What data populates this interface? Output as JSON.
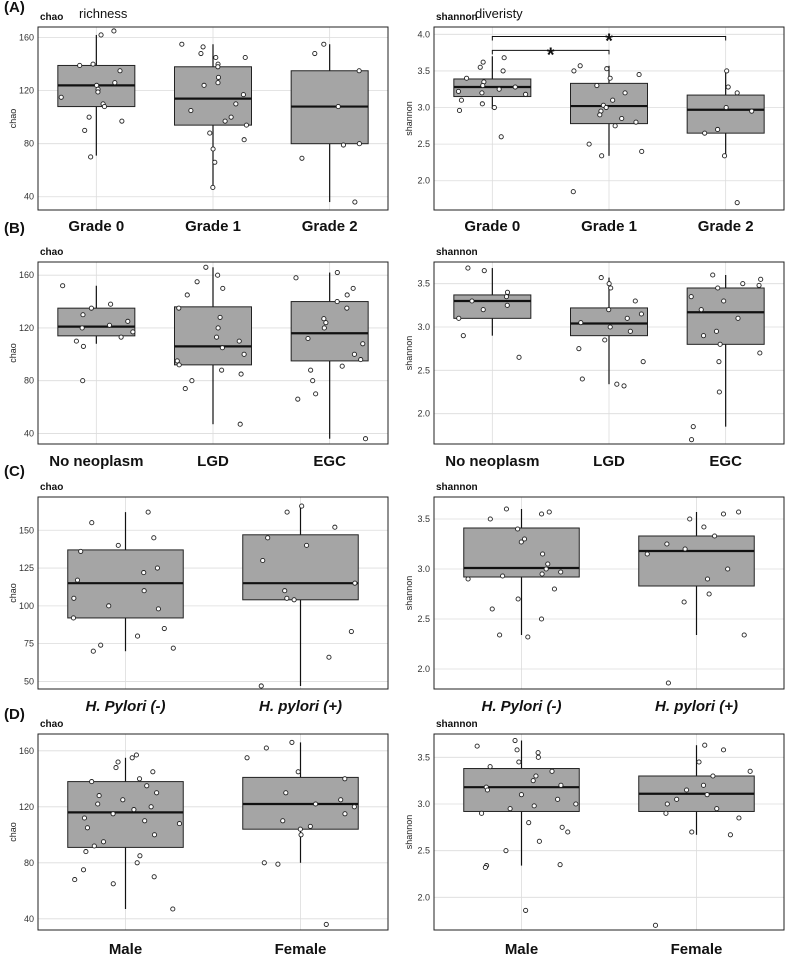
{
  "chart_data": [
    {
      "type": "box",
      "panel": "(A)",
      "title": "chao",
      "subtitle": "richness",
      "ylabel": "chao",
      "ylim": [
        30,
        168
      ],
      "yticks": [
        40,
        80,
        120,
        160
      ],
      "categories": [
        "Grade 0",
        "Grade 1",
        "Grade 2"
      ],
      "boxes": [
        {
          "min": 71,
          "q1": 108,
          "median": 124,
          "q3": 139,
          "max": 162,
          "points": [
            165,
            162,
            140,
            139,
            135,
            126,
            124,
            121,
            119,
            115,
            110,
            108,
            100,
            97,
            90,
            70
          ]
        },
        {
          "min": 47,
          "q1": 94,
          "median": 114,
          "q3": 138,
          "max": 155,
          "points": [
            155,
            153,
            148,
            145,
            145,
            140,
            138,
            130,
            126,
            124,
            117,
            110,
            105,
            100,
            97,
            94,
            88,
            83,
            76,
            66,
            47
          ]
        },
        {
          "min": 36,
          "q1": 80,
          "median": 108,
          "q3": 135,
          "max": 155,
          "points": [
            155,
            148,
            135,
            108,
            80,
            79,
            69,
            36
          ]
        }
      ],
      "significance": []
    },
    {
      "type": "box",
      "panel": "",
      "title": "shannon",
      "subtitle": "diveristy",
      "ylabel": "shannon",
      "ylim": [
        1.6,
        4.1
      ],
      "yticks": [
        "2.0",
        "2.5",
        "3.0",
        "3.5",
        "4.0"
      ],
      "categories": [
        "Grade 0",
        "Grade 1",
        "Grade 2"
      ],
      "boxes": [
        {
          "min": 2.98,
          "q1": 3.15,
          "median": 3.28,
          "q3": 3.39,
          "max": 3.7,
          "points": [
            3.68,
            3.62,
            3.55,
            3.5,
            3.4,
            3.35,
            3.3,
            3.28,
            3.25,
            3.22,
            3.2,
            3.18,
            3.1,
            3.05,
            3.0,
            2.96,
            2.6
          ]
        },
        {
          "min": 2.34,
          "q1": 2.78,
          "median": 3.02,
          "q3": 3.33,
          "max": 3.57,
          "points": [
            3.57,
            3.53,
            3.5,
            3.45,
            3.4,
            3.3,
            3.2,
            3.1,
            3.03,
            3.0,
            2.95,
            2.9,
            2.85,
            2.8,
            2.75,
            2.5,
            2.4,
            2.34,
            1.85
          ]
        },
        {
          "min": 2.34,
          "q1": 2.65,
          "median": 2.97,
          "q3": 3.17,
          "max": 3.5,
          "points": [
            3.5,
            3.28,
            3.2,
            3.0,
            2.95,
            2.7,
            2.65,
            2.34,
            1.7
          ]
        }
      ],
      "significance": [
        {
          "from": 0,
          "to": 1,
          "label": "*",
          "y": 3.78
        },
        {
          "from": 0,
          "to": 2,
          "label": "*",
          "y": 3.97
        }
      ]
    },
    {
      "type": "box",
      "panel": "(B)",
      "title": "chao",
      "subtitle": "",
      "ylabel": "chao",
      "ylim": [
        32,
        170
      ],
      "yticks": [
        40,
        80,
        120,
        160
      ],
      "categories": [
        "No neoplasm",
        "LGD",
        "EGC"
      ],
      "boxes": [
        {
          "min": 108,
          "q1": 114,
          "median": 121,
          "q3": 135,
          "max": 152,
          "points": [
            152,
            138,
            135,
            130,
            125,
            122,
            120,
            117,
            113,
            110,
            106,
            80
          ]
        },
        {
          "min": 47,
          "q1": 92,
          "median": 106,
          "q3": 136,
          "max": 166,
          "points": [
            166,
            160,
            155,
            150,
            145,
            135,
            128,
            120,
            113,
            110,
            105,
            100,
            95,
            92,
            88,
            85,
            80,
            74,
            47
          ]
        },
        {
          "min": 36,
          "q1": 95,
          "median": 116,
          "q3": 140,
          "max": 162,
          "points": [
            162,
            158,
            150,
            145,
            140,
            135,
            127,
            124,
            120,
            112,
            108,
            100,
            96,
            91,
            88,
            80,
            70,
            66,
            36
          ]
        }
      ],
      "significance": []
    },
    {
      "type": "box",
      "panel": "",
      "title": "shannon",
      "subtitle": "",
      "ylabel": "shannon",
      "ylim": [
        1.65,
        3.75
      ],
      "yticks": [
        "2.0",
        "2.5",
        "3.0",
        "3.5"
      ],
      "categories": [
        "No neoplasm",
        "LGD",
        "EGC"
      ],
      "boxes": [
        {
          "min": 2.9,
          "q1": 3.1,
          "median": 3.3,
          "q3": 3.37,
          "max": 3.68,
          "points": [
            3.68,
            3.65,
            3.4,
            3.35,
            3.3,
            3.25,
            3.2,
            3.1,
            2.9,
            2.65
          ]
        },
        {
          "min": 2.34,
          "q1": 2.9,
          "median": 3.04,
          "q3": 3.22,
          "max": 3.57,
          "points": [
            3.57,
            3.5,
            3.45,
            3.3,
            3.2,
            3.15,
            3.1,
            3.05,
            3.0,
            2.95,
            2.85,
            2.75,
            2.6,
            2.4,
            2.34,
            2.32
          ]
        },
        {
          "min": 1.85,
          "q1": 2.8,
          "median": 3.17,
          "q3": 3.45,
          "max": 3.6,
          "points": [
            3.6,
            3.55,
            3.5,
            3.48,
            3.45,
            3.35,
            3.3,
            3.2,
            3.1,
            2.95,
            2.9,
            2.8,
            2.7,
            2.6,
            2.25,
            1.85,
            1.7
          ]
        }
      ],
      "significance": []
    },
    {
      "type": "box",
      "panel": "(C)",
      "title": "chao",
      "subtitle": "",
      "ylabel": "chao",
      "ylim": [
        45,
        172
      ],
      "yticks": [
        50,
        75,
        100,
        125,
        150
      ],
      "categories": [
        "H. Pylori (-)",
        "H. pylori (+)"
      ],
      "italic": true,
      "boxes": [
        {
          "min": 70,
          "q1": 92,
          "median": 115,
          "q3": 137,
          "max": 162,
          "points": [
            162,
            155,
            145,
            140,
            136,
            125,
            122,
            117,
            110,
            105,
            100,
            98,
            92,
            85,
            80,
            74,
            72,
            70
          ]
        },
        {
          "min": 47,
          "q1": 104,
          "median": 115,
          "q3": 147,
          "max": 166,
          "points": [
            166,
            162,
            152,
            145,
            140,
            130,
            115,
            110,
            105,
            104,
            83,
            66,
            47
          ]
        }
      ],
      "significance": []
    },
    {
      "type": "box",
      "panel": "",
      "title": "shannon",
      "subtitle": "",
      "ylabel": "shannon",
      "ylim": [
        1.8,
        3.72
      ],
      "yticks": [
        "2.0",
        "2.5",
        "3.0",
        "3.5"
      ],
      "categories": [
        "H. Pylori (-)",
        "H. pylori (+)"
      ],
      "italic": true,
      "boxes": [
        {
          "min": 2.34,
          "q1": 2.92,
          "median": 3.01,
          "q3": 3.41,
          "max": 3.6,
          "points": [
            3.6,
            3.57,
            3.55,
            3.5,
            3.4,
            3.3,
            3.27,
            3.15,
            3.05,
            3.0,
            2.97,
            2.95,
            2.93,
            2.9,
            2.8,
            2.7,
            2.6,
            2.5,
            2.34,
            2.32
          ]
        },
        {
          "min": 2.34,
          "q1": 2.83,
          "median": 3.18,
          "q3": 3.33,
          "max": 3.57,
          "points": [
            3.57,
            3.55,
            3.5,
            3.42,
            3.33,
            3.25,
            3.2,
            3.15,
            3.0,
            2.9,
            2.75,
            2.67,
            2.34,
            1.86
          ]
        }
      ],
      "significance": []
    },
    {
      "type": "box",
      "panel": "(D)",
      "title": "chao",
      "subtitle": "",
      "ylabel": "chao",
      "ylim": [
        32,
        172
      ],
      "yticks": [
        40,
        80,
        120,
        160
      ],
      "categories": [
        "Male",
        "Female"
      ],
      "boxes": [
        {
          "min": 47,
          "q1": 91,
          "median": 116,
          "q3": 138,
          "max": 155,
          "points": [
            157,
            155,
            152,
            148,
            145,
            140,
            138,
            135,
            130,
            128,
            125,
            122,
            120,
            118,
            115,
            112,
            110,
            108,
            105,
            100,
            95,
            92,
            88,
            85,
            80,
            75,
            70,
            68,
            65,
            47
          ]
        },
        {
          "min": 80,
          "q1": 104,
          "median": 122,
          "q3": 141,
          "max": 166,
          "points": [
            166,
            162,
            155,
            145,
            140,
            130,
            125,
            122,
            120,
            115,
            110,
            106,
            104,
            100,
            80,
            79,
            36
          ]
        }
      ],
      "significance": []
    },
    {
      "type": "box",
      "panel": "",
      "title": "shannon",
      "subtitle": "",
      "ylabel": "shannon",
      "ylim": [
        1.65,
        3.75
      ],
      "yticks": [
        "2.0",
        "2.5",
        "3.0",
        "3.5"
      ],
      "categories": [
        "Male",
        "Female"
      ],
      "boxes": [
        {
          "min": 2.34,
          "q1": 2.92,
          "median": 3.18,
          "q3": 3.38,
          "max": 3.68,
          "points": [
            3.68,
            3.62,
            3.58,
            3.55,
            3.5,
            3.45,
            3.4,
            3.35,
            3.3,
            3.25,
            3.2,
            3.18,
            3.15,
            3.1,
            3.05,
            3.0,
            2.98,
            2.95,
            2.9,
            2.8,
            2.75,
            2.7,
            2.6,
            2.5,
            2.35,
            2.34,
            2.32,
            1.86
          ]
        },
        {
          "min": 2.67,
          "q1": 2.92,
          "median": 3.11,
          "q3": 3.3,
          "max": 3.63,
          "points": [
            3.63,
            3.58,
            3.45,
            3.35,
            3.3,
            3.2,
            3.15,
            3.1,
            3.05,
            3.0,
            2.95,
            2.9,
            2.85,
            2.7,
            2.67,
            1.7
          ]
        }
      ],
      "significance": []
    }
  ]
}
